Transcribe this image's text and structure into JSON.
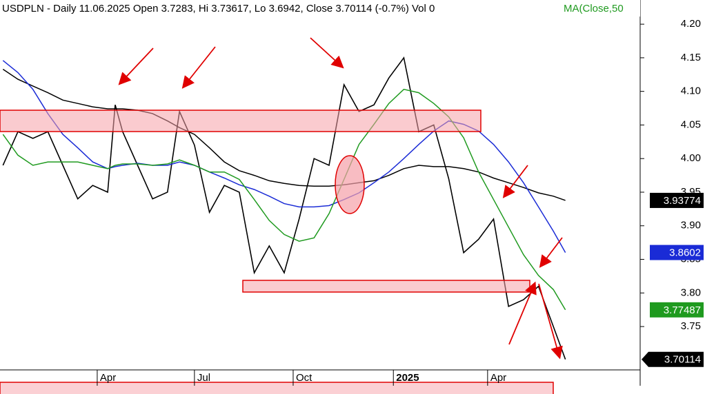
{
  "chart_data": {
    "type": "line",
    "title": "USDPLN - Daily 11.06.2025 Open 3.7283, Hi 3.73617, Lo 3.6942, Close 3.70114 (-0.7%) Vol 0",
    "ma_label": "MA(Close,50",
    "x": [
      2,
      12,
      22,
      32,
      42,
      52,
      62,
      72,
      77,
      82,
      92,
      102,
      112,
      120,
      130,
      140,
      150,
      160,
      170,
      180,
      190,
      200,
      210,
      220,
      230,
      240,
      250,
      260,
      270,
      280,
      290,
      300,
      310,
      320,
      330,
      340,
      350,
      360,
      370,
      378
    ],
    "xlim": [
      0,
      428
    ],
    "xticks": [
      {
        "value": 65,
        "label": "Apr"
      },
      {
        "value": 130,
        "label": "Jul"
      },
      {
        "value": 196,
        "label": "Oct"
      },
      {
        "value": 263,
        "label": "2025"
      },
      {
        "value": 326,
        "label": "Apr"
      }
    ],
    "ylim": [
      3.6855,
      4.236
    ],
    "yticks": [
      {
        "value": 3.75,
        "label": "3.75"
      },
      {
        "value": 3.8,
        "label": "3.80"
      },
      {
        "value": 3.85,
        "label": "3.85"
      },
      {
        "value": 3.9,
        "label": "3.90"
      },
      {
        "value": 3.95,
        "label": "3.95"
      },
      {
        "value": 4.0,
        "label": "4.00"
      },
      {
        "value": 4.05,
        "label": "4.05"
      },
      {
        "value": 4.1,
        "label": "4.10"
      },
      {
        "value": 4.15,
        "label": "4.15"
      },
      {
        "value": 4.2,
        "label": "4.20"
      }
    ],
    "series": [
      {
        "color": "#000000",
        "values": [
          3.99,
          4.04,
          4.03,
          4.04,
          3.99,
          3.94,
          3.96,
          3.95,
          4.08,
          4.04,
          3.99,
          3.94,
          3.95,
          4.07,
          4.02,
          3.92,
          3.96,
          3.95,
          3.83,
          3.87,
          3.83,
          3.91,
          4.0,
          3.99,
          4.11,
          4.07,
          4.08,
          4.12,
          4.15,
          4.04,
          4.05,
          3.97,
          3.86,
          3.88,
          3.91,
          3.78,
          3.79,
          3.81,
          3.75,
          3.70114
        ]
      },
      {
        "color": "#000000",
        "values": [
          4.133,
          4.118,
          4.108,
          4.098,
          4.087,
          4.082,
          4.077,
          4.074,
          4.074,
          4.074,
          4.072,
          4.067,
          4.056,
          4.046,
          4.036,
          4.016,
          3.995,
          3.982,
          3.975,
          3.967,
          3.963,
          3.96,
          3.959,
          3.959,
          3.961,
          3.964,
          3.967,
          3.975,
          3.985,
          3.99,
          3.988,
          3.988,
          3.985,
          3.98,
          3.971,
          3.964,
          3.957,
          3.949,
          3.944,
          3.93774
        ]
      },
      {
        "color": "#1a2bd6",
        "values": [
          4.146,
          4.128,
          4.103,
          4.067,
          4.036,
          4.016,
          3.995,
          3.985,
          3.988,
          3.99,
          3.993,
          3.99,
          3.99,
          3.995,
          3.99,
          3.98,
          3.971,
          3.961,
          3.954,
          3.944,
          3.933,
          3.928,
          3.928,
          3.93,
          3.939,
          3.949,
          3.964,
          3.98,
          4.0,
          4.021,
          4.041,
          4.056,
          4.051,
          4.041,
          4.021,
          3.995,
          3.964,
          3.928,
          3.892,
          3.8602
        ]
      },
      {
        "color": "#1f9a1f",
        "values": [
          4.036,
          4.005,
          3.99,
          3.995,
          3.995,
          3.995,
          3.99,
          3.985,
          3.99,
          3.992,
          3.992,
          3.99,
          3.992,
          3.998,
          3.99,
          3.98,
          3.98,
          3.969,
          3.939,
          3.908,
          3.887,
          3.877,
          3.882,
          3.918,
          3.969,
          4.021,
          4.051,
          4.082,
          4.103,
          4.098,
          4.082,
          4.062,
          4.031,
          3.98,
          3.939,
          3.898,
          3.857,
          3.826,
          3.805,
          3.77487
        ]
      }
    ]
  }
}
